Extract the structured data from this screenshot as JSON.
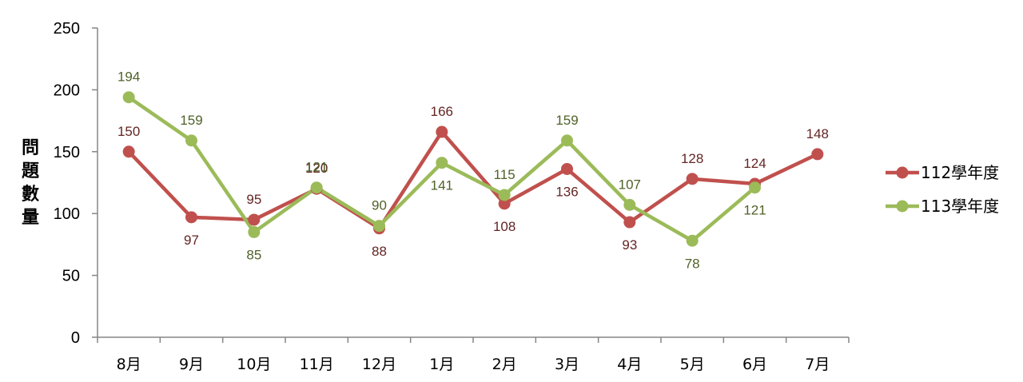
{
  "chart_data": {
    "type": "line",
    "title": "",
    "xlabel": "",
    "ylabel": "問題數量",
    "ylim": [
      0,
      250
    ],
    "yticks": [
      0,
      50,
      100,
      150,
      200,
      250
    ],
    "grid": false,
    "legend_position": "right",
    "categories": [
      "8月",
      "9月",
      "10月",
      "11月",
      "12月",
      "1月",
      "2月",
      "3月",
      "4月",
      "5月",
      "6月",
      "7月"
    ],
    "series": [
      {
        "name": "112學年度",
        "color": "#C0504D",
        "label_color": "#632523",
        "values": [
          150,
          97,
          95,
          120,
          88,
          166,
          108,
          136,
          93,
          128,
          124,
          148
        ],
        "label_pos": [
          "above",
          "below",
          "above",
          "above",
          "below",
          "above",
          "below",
          "below",
          "below",
          "above",
          "above",
          "above"
        ]
      },
      {
        "name": "113學年度",
        "color": "#9BBB59",
        "label_color": "#4F6228",
        "values": [
          194,
          159,
          85,
          121,
          90,
          141,
          115,
          159,
          107,
          78,
          121,
          null
        ],
        "label_pos": [
          "above",
          "above",
          "below",
          "above",
          "above",
          "below",
          "above",
          "above",
          "above",
          "below",
          "below",
          null
        ]
      }
    ]
  }
}
